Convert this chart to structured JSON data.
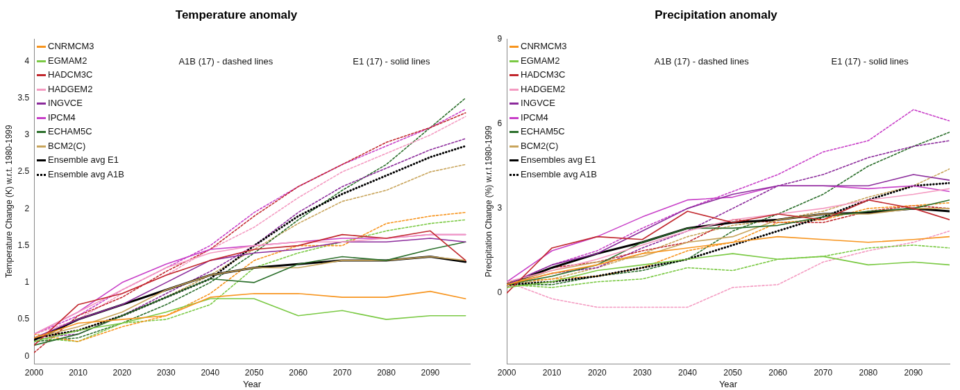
{
  "chart_data": [
    {
      "type": "line",
      "title": "Temperature anomaly",
      "xlabel": "Year",
      "ylabel": "Temperature Change (K) w.r.t. 1980-1999",
      "x": [
        2000,
        2010,
        2020,
        2030,
        2040,
        2050,
        2060,
        2070,
        2080,
        2090,
        2098
      ],
      "xlim": [
        2000,
        2099
      ],
      "xticks": [
        2000,
        2010,
        2020,
        2030,
        2040,
        2050,
        2060,
        2070,
        2080,
        2090
      ],
      "ylim": [
        -0.1,
        4.3
      ],
      "yticks": [
        0,
        0.5,
        1,
        1.5,
        2,
        2.5,
        3,
        3.5,
        4
      ],
      "grid": false,
      "legend": "top left",
      "marker": "none",
      "annotations": [
        "A1B (17) - dashed lines",
        "E1 (17) - solid lines"
      ],
      "series": [
        {
          "name": "CNRMCM3",
          "color": "#f7941d",
          "line_style": "solid",
          "values": [
            0.25,
            0.45,
            0.5,
            0.55,
            0.8,
            0.85,
            0.85,
            0.8,
            0.8,
            0.88,
            0.78
          ]
        },
        {
          "name": "EGMAM2",
          "color": "#7ac943",
          "line_style": "solid",
          "values": [
            0.2,
            0.35,
            0.45,
            0.6,
            0.78,
            0.78,
            0.55,
            0.62,
            0.5,
            0.55,
            0.55
          ]
        },
        {
          "name": "HADCM3C",
          "color": "#c1272d",
          "line_style": "solid",
          "values": [
            0.15,
            0.7,
            0.85,
            1.1,
            1.3,
            1.45,
            1.5,
            1.65,
            1.6,
            1.7,
            1.3
          ]
        },
        {
          "name": "HADGEM2",
          "color": "#f49ac1",
          "line_style": "solid",
          "values": [
            0.3,
            0.6,
            0.9,
            1.2,
            1.4,
            1.5,
            1.55,
            1.55,
            1.6,
            1.65,
            1.65
          ]
        },
        {
          "name": "INGVCE",
          "color": "#8b2a9b",
          "line_style": "solid",
          "values": [
            0.25,
            0.5,
            0.7,
            1.0,
            1.3,
            1.4,
            1.45,
            1.55,
            1.55,
            1.6,
            1.55
          ]
        },
        {
          "name": "IPCM4",
          "color": "#c83fc8",
          "line_style": "solid",
          "values": [
            0.3,
            0.6,
            1.0,
            1.25,
            1.45,
            1.5,
            1.55,
            1.6,
            1.6,
            1.65,
            1.65
          ]
        },
        {
          "name": "ECHAM5C",
          "color": "#2a6e2a",
          "line_style": "solid",
          "values": [
            0.15,
            0.3,
            0.55,
            0.8,
            1.05,
            1.0,
            1.25,
            1.35,
            1.3,
            1.45,
            1.55
          ]
        },
        {
          "name": "BCM2(C)",
          "color": "#c8a45a",
          "line_style": "solid",
          "values": [
            0.25,
            0.4,
            0.6,
            0.9,
            1.1,
            1.2,
            1.2,
            1.3,
            1.3,
            1.35,
            1.3
          ]
        },
        {
          "name": "Ensemble avg E1",
          "color": "#000000",
          "line_style": "solid",
          "values": [
            0.22,
            0.5,
            0.7,
            0.9,
            1.1,
            1.2,
            1.25,
            1.3,
            1.3,
            1.35,
            1.28
          ]
        },
        {
          "name": "Ensemble avg A1B",
          "color": "#000000",
          "line_style": "dotted",
          "values": [
            0.25,
            0.35,
            0.55,
            0.8,
            1.05,
            1.5,
            1.9,
            2.2,
            2.45,
            2.7,
            2.85
          ]
        },
        {
          "color": "#f7941d",
          "line_style": "dashed",
          "values": [
            0.3,
            0.2,
            0.4,
            0.55,
            0.85,
            1.3,
            1.5,
            1.5,
            1.8,
            1.9,
            1.95
          ]
        },
        {
          "color": "#7ac943",
          "line_style": "dashed",
          "values": [
            0.25,
            0.2,
            0.45,
            0.5,
            0.7,
            1.2,
            1.4,
            1.55,
            1.7,
            1.8,
            1.85
          ]
        },
        {
          "color": "#c1272d",
          "line_style": "dashed",
          "values": [
            0.05,
            0.55,
            0.8,
            1.15,
            1.45,
            1.9,
            2.3,
            2.6,
            2.9,
            3.1,
            3.3
          ]
        },
        {
          "color": "#f49ac1",
          "line_style": "dashed",
          "values": [
            0.3,
            0.5,
            0.85,
            1.1,
            1.45,
            1.75,
            2.15,
            2.5,
            2.75,
            3.0,
            3.25
          ]
        },
        {
          "color": "#8b2a9b",
          "line_style": "dashed",
          "values": [
            0.25,
            0.3,
            0.55,
            0.85,
            1.15,
            1.5,
            1.95,
            2.3,
            2.55,
            2.8,
            2.95
          ]
        },
        {
          "color": "#c83fc8",
          "line_style": "dashed",
          "values": [
            0.3,
            0.55,
            0.9,
            1.2,
            1.5,
            1.95,
            2.3,
            2.6,
            2.85,
            3.1,
            3.35
          ]
        },
        {
          "color": "#2a6e2a",
          "line_style": "dashed",
          "values": [
            0.2,
            0.25,
            0.45,
            0.7,
            1.0,
            1.4,
            1.85,
            2.25,
            2.6,
            3.1,
            3.5
          ]
        },
        {
          "color": "#c8a45a",
          "line_style": "dashed",
          "values": [
            0.25,
            0.35,
            0.55,
            0.8,
            1.1,
            1.45,
            1.8,
            2.1,
            2.25,
            2.5,
            2.6
          ]
        }
      ]
    },
    {
      "type": "line",
      "title": "Precipitation anomaly",
      "xlabel": "Year",
      "ylabel": "Precipitation Change (%) w.r.t 1980-1999",
      "x": [
        2000,
        2010,
        2020,
        2030,
        2040,
        2050,
        2060,
        2070,
        2080,
        2090,
        2098
      ],
      "xlim": [
        2000,
        2098
      ],
      "xticks": [
        2000,
        2010,
        2020,
        2030,
        2040,
        2050,
        2060,
        2070,
        2080,
        2090
      ],
      "ylim": [
        -2.5,
        9
      ],
      "yticks": [
        0,
        3,
        6,
        9
      ],
      "grid": false,
      "legend": "top left",
      "marker": "none",
      "annotations": [
        "A1B (17) - dashed lines",
        "E1 (17) - solid lines"
      ],
      "series": [
        {
          "name": "CNRMCM3",
          "color": "#f7941d",
          "line_style": "solid",
          "values": [
            0.3,
            0.7,
            1.0,
            1.4,
            1.6,
            1.8,
            2.0,
            1.9,
            1.8,
            1.9,
            2.0
          ]
        },
        {
          "name": "EGMAM2",
          "color": "#7ac943",
          "line_style": "solid",
          "values": [
            0.2,
            0.4,
            0.8,
            1.0,
            1.2,
            1.4,
            1.2,
            1.3,
            1.0,
            1.1,
            1.0
          ]
        },
        {
          "name": "HADCM3C",
          "color": "#c1272d",
          "line_style": "solid",
          "values": [
            0.0,
            1.6,
            2.0,
            1.9,
            2.9,
            2.5,
            2.8,
            2.6,
            3.3,
            3.0,
            2.6
          ]
        },
        {
          "name": "HADGEM2",
          "color": "#f49ac1",
          "line_style": "solid",
          "values": [
            0.4,
            0.8,
            1.2,
            1.7,
            2.2,
            2.6,
            2.8,
            3.0,
            3.3,
            3.5,
            3.7
          ]
        },
        {
          "name": "INGVCE",
          "color": "#8b2a9b",
          "line_style": "solid",
          "values": [
            0.3,
            1.0,
            1.4,
            2.2,
            3.0,
            3.5,
            3.8,
            3.8,
            3.8,
            4.2,
            4.0
          ]
        },
        {
          "name": "IPCM4",
          "color": "#c83fc8",
          "line_style": "solid",
          "values": [
            0.4,
            1.5,
            2.0,
            2.7,
            3.3,
            3.4,
            3.8,
            3.8,
            3.7,
            3.8,
            3.6
          ]
        },
        {
          "name": "ECHAM5C",
          "color": "#2a6e2a",
          "line_style": "solid",
          "values": [
            0.3,
            0.6,
            1.0,
            1.8,
            2.3,
            2.3,
            2.4,
            2.7,
            2.9,
            3.0,
            3.3
          ]
        },
        {
          "name": "BCM2(C)",
          "color": "#c8a45a",
          "line_style": "solid",
          "values": [
            0.3,
            0.8,
            1.1,
            1.3,
            1.8,
            2.0,
            2.6,
            2.8,
            2.8,
            3.0,
            3.0
          ]
        },
        {
          "name": "Ensembles avg E1",
          "color": "#000000",
          "line_style": "solid",
          "values": [
            0.3,
            0.9,
            1.4,
            1.8,
            2.3,
            2.5,
            2.6,
            2.8,
            2.85,
            3.0,
            2.9
          ]
        },
        {
          "name": "Ensemble avg A1B",
          "color": "#000000",
          "line_style": "dotted",
          "values": [
            0.3,
            0.4,
            0.6,
            0.9,
            1.2,
            1.7,
            2.2,
            2.7,
            3.3,
            3.8,
            3.9
          ]
        },
        {
          "color": "#f7941d",
          "line_style": "dashed",
          "values": [
            0.4,
            0.5,
            0.6,
            0.9,
            1.5,
            1.8,
            2.5,
            2.6,
            3.0,
            3.1,
            3.2
          ]
        },
        {
          "color": "#7ac943",
          "line_style": "dashed",
          "values": [
            0.3,
            0.2,
            0.4,
            0.5,
            0.9,
            0.8,
            1.2,
            1.3,
            1.6,
            1.7,
            1.6
          ]
        },
        {
          "color": "#c1272d",
          "line_style": "dashed",
          "values": [
            0.2,
            0.9,
            1.1,
            1.5,
            1.8,
            2.6,
            2.5,
            2.5,
            2.9,
            3.1,
            3.0
          ]
        },
        {
          "color": "#f49ac1",
          "line_style": "dashed",
          "values": [
            0.4,
            -0.2,
            -0.5,
            -0.5,
            -0.5,
            0.2,
            0.3,
            1.1,
            1.5,
            1.8,
            2.2
          ]
        },
        {
          "color": "#8b2a9b",
          "line_style": "dashed",
          "values": [
            0.3,
            0.7,
            0.9,
            1.6,
            2.2,
            3.0,
            3.8,
            4.2,
            4.8,
            5.2,
            5.4
          ]
        },
        {
          "color": "#c83fc8",
          "line_style": "dashed",
          "values": [
            0.3,
            1.0,
            1.5,
            2.3,
            3.0,
            3.6,
            4.2,
            5.0,
            5.4,
            6.5,
            6.1
          ]
        },
        {
          "color": "#2a6e2a",
          "line_style": "dashed",
          "values": [
            0.3,
            0.3,
            0.6,
            0.8,
            1.2,
            2.2,
            2.8,
            3.5,
            4.5,
            5.2,
            5.7
          ]
        },
        {
          "color": "#c8a45a",
          "line_style": "dashed",
          "values": [
            0.3,
            0.5,
            0.9,
            1.4,
            2.0,
            2.4,
            2.6,
            2.9,
            3.4,
            3.8,
            4.4
          ]
        }
      ]
    }
  ]
}
